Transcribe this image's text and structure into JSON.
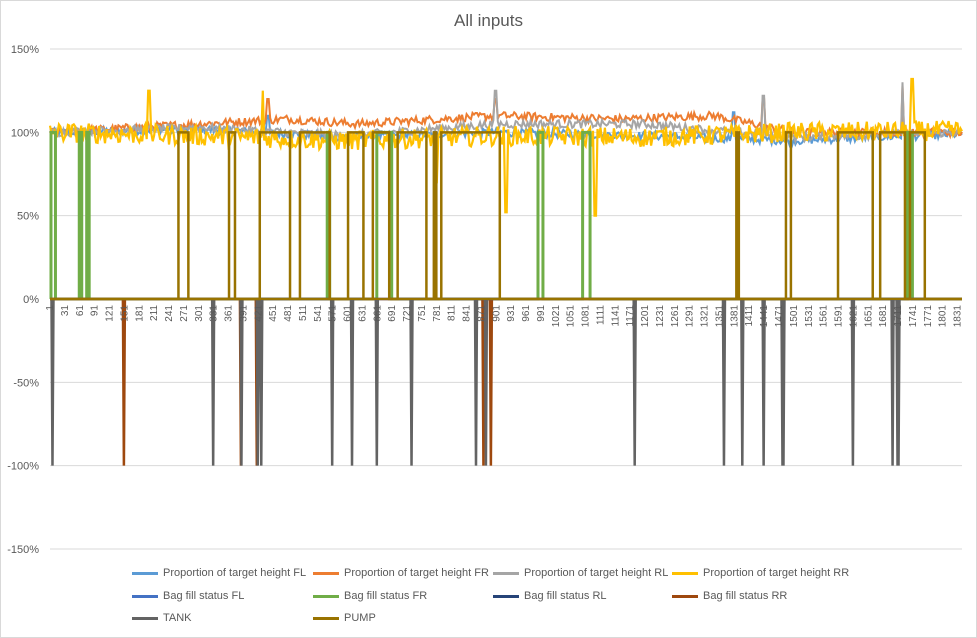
{
  "chart_data": {
    "type": "line",
    "title": "All inputs",
    "xlabel": "",
    "ylabel": "",
    "ylim": [
      -1.5,
      1.5
    ],
    "yticks": [
      "150%",
      "100%",
      "50%",
      "0%",
      "-50%",
      "-100%",
      "-150%"
    ],
    "ytick_values": [
      1.5,
      1.0,
      0.5,
      0.0,
      -0.5,
      -1.0,
      -1.5
    ],
    "xlim": [
      1,
      1840
    ],
    "xticks": [
      "1",
      "31",
      "61",
      "91",
      "121",
      "151",
      "181",
      "211",
      "241",
      "271",
      "301",
      "331",
      "361",
      "391",
      "421",
      "451",
      "481",
      "511",
      "541",
      "571",
      "601",
      "631",
      "661",
      "691",
      "721",
      "751",
      "781",
      "811",
      "841",
      "871",
      "901",
      "931",
      "961",
      "991",
      "1021",
      "1051",
      "1081",
      "1111",
      "1141",
      "1171",
      "1201",
      "1231",
      "1261",
      "1291",
      "1321",
      "1351",
      "1381",
      "1411",
      "1441",
      "1471",
      "1501",
      "1531",
      "1561",
      "1591",
      "1621",
      "1651",
      "1681",
      "1711",
      "1741",
      "1771",
      "1801",
      "1831"
    ],
    "grid": true,
    "legend_position": "bottom",
    "series": [
      {
        "name": "Proportion of target height FL",
        "color": "#5b9bd5",
        "kind": "height",
        "base": 1.0,
        "segments": [
          [
            1,
            1.0
          ],
          [
            300,
            1.02
          ],
          [
            600,
            0.97
          ],
          [
            900,
            1.0
          ],
          [
            1200,
            0.98
          ],
          [
            1500,
            0.95
          ],
          [
            1840,
            0.99
          ]
        ],
        "spikes": [
          [
            440,
            1.1
          ],
          [
            1380,
            1.12
          ],
          [
            1720,
            1.1
          ]
        ]
      },
      {
        "name": "Proportion of target height FR",
        "color": "#ed7d31",
        "kind": "height",
        "base": 1.0,
        "segments": [
          [
            1,
            1.0
          ],
          [
            300,
            1.05
          ],
          [
            480,
            1.08
          ],
          [
            620,
            1.05
          ],
          [
            900,
            1.1
          ],
          [
            1150,
            1.08
          ],
          [
            1340,
            1.1
          ],
          [
            1500,
            1.0
          ],
          [
            1840,
            1.0
          ]
        ],
        "spikes": [
          [
            440,
            1.2
          ],
          [
            900,
            1.2
          ],
          [
            1440,
            1.2
          ],
          [
            1720,
            1.28
          ]
        ]
      },
      {
        "name": "Proportion of target height RL",
        "color": "#a5a5a5",
        "kind": "height",
        "base": 1.0,
        "segments": [
          [
            1,
            1.0
          ],
          [
            300,
            1.03
          ],
          [
            600,
            0.98
          ],
          [
            900,
            1.05
          ],
          [
            1200,
            1.05
          ],
          [
            1500,
            0.97
          ],
          [
            1840,
            1.0
          ]
        ],
        "spikes": [
          [
            900,
            1.25
          ],
          [
            1440,
            1.22
          ],
          [
            1720,
            1.3
          ]
        ]
      },
      {
        "name": "Proportion of target height RR",
        "color": "#ffc000",
        "kind": "height",
        "base": 1.0,
        "segments": [
          [
            1,
            1.0
          ],
          [
            300,
            0.98
          ],
          [
            600,
            0.95
          ],
          [
            900,
            0.98
          ],
          [
            1200,
            0.97
          ],
          [
            1500,
            1.0
          ],
          [
            1840,
            1.01
          ]
        ],
        "spikes": [
          [
            200,
            1.25
          ],
          [
            430,
            1.25
          ],
          [
            780,
            0.7
          ],
          [
            920,
            0.52
          ],
          [
            1100,
            0.5
          ],
          [
            1740,
            1.32
          ]
        ]
      },
      {
        "name": "Bag fill status FL",
        "color": "#4472c4",
        "kind": "status",
        "values": []
      },
      {
        "name": "Bag fill status FR",
        "color": "#70ad47",
        "kind": "pulse",
        "level": 1.0,
        "intervals": [
          [
            3,
            12
          ],
          [
            60,
            65
          ],
          [
            75,
            80
          ],
          [
            560,
            565
          ],
          [
            660,
            690
          ],
          [
            985,
            995
          ],
          [
            1075,
            1090
          ],
          [
            1730,
            1740
          ]
        ]
      },
      {
        "name": "Bag fill status RL",
        "color": "#264478",
        "kind": "status",
        "values": []
      },
      {
        "name": "Bag fill status RR",
        "color": "#9e480e",
        "kind": "spike",
        "level": -1.0,
        "points": [
          150,
          386,
          418,
          875,
          890
        ]
      },
      {
        "name": "TANK",
        "color": "#636363",
        "kind": "spike",
        "level": -1.0,
        "points": [
          6,
          330,
          387,
          420,
          427,
          570,
          610,
          660,
          730,
          860,
          880,
          1180,
          1360,
          1397,
          1440,
          1478,
          1480,
          1620,
          1700,
          1710,
          1712
        ]
      },
      {
        "name": "PUMP",
        "color": "#997300",
        "kind": "pulse",
        "level": 1.0,
        "intervals": [
          [
            260,
            280
          ],
          [
            362,
            374
          ],
          [
            424,
            485
          ],
          [
            505,
            565
          ],
          [
            602,
            633
          ],
          [
            652,
            685
          ],
          [
            702,
            760
          ],
          [
            775,
            780
          ],
          [
            790,
            908
          ],
          [
            1385,
            1390
          ],
          [
            1485,
            1495
          ],
          [
            1590,
            1660
          ],
          [
            1675,
            1725
          ],
          [
            1735,
            1765
          ]
        ]
      }
    ]
  }
}
